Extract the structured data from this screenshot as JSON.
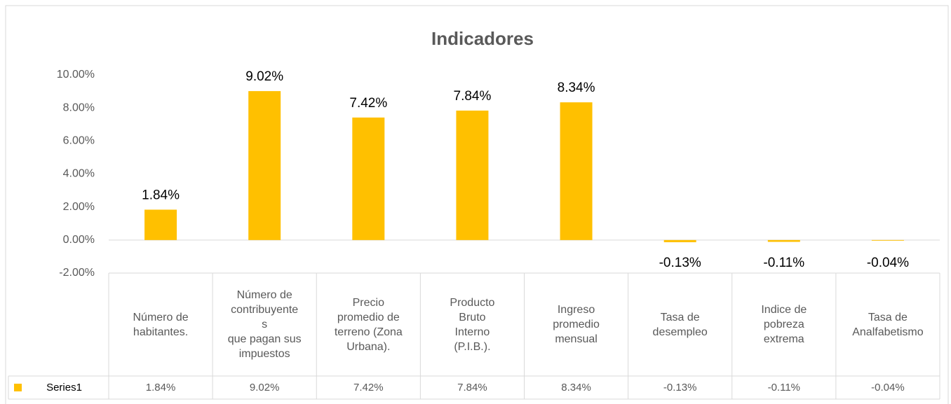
{
  "chart_data": {
    "type": "bar",
    "title": "Indicadores",
    "categories": [
      "Número de\nhabitantes.",
      "Número de\ncontribuyente\ns\nque pagan sus\nimpuestos",
      "Precio\npromedio de\nterreno (Zona\nUrbana).",
      "Producto\nBruto\nInterno\n(P.I.B.).",
      "Ingreso\npromedio\nmensual",
      "Tasa de\ndesempleo",
      "Indice de\npobreza\nextrema",
      "Tasa de\nAnalfabetismo"
    ],
    "series": [
      {
        "name": "Series1",
        "color": "#ffc000",
        "values": [
          1.84,
          9.02,
          7.42,
          7.84,
          8.34,
          -0.13,
          -0.11,
          -0.04
        ],
        "value_labels": [
          "1.84%",
          "9.02%",
          "7.42%",
          "7.84%",
          "8.34%",
          "-0.13%",
          "-0.11%",
          "-0.04%"
        ]
      }
    ],
    "ylim": [
      -2,
      10
    ],
    "yticks": [
      {
        "value": -2,
        "label": "-2.00%"
      },
      {
        "value": 0,
        "label": "0.00%"
      },
      {
        "value": 2,
        "label": "2.00%"
      },
      {
        "value": 4,
        "label": "4.00%"
      },
      {
        "value": 6,
        "label": "6.00%"
      },
      {
        "value": 8,
        "label": "8.00%"
      },
      {
        "value": 10,
        "label": "10.00%"
      }
    ],
    "data_table": true
  }
}
